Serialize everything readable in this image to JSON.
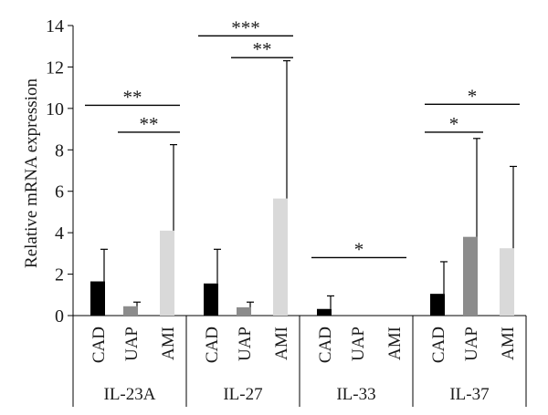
{
  "chart_data": {
    "type": "bar",
    "title": "",
    "xlabel": "",
    "ylabel": "Relative mRNA expression",
    "ylim": [
      0,
      14
    ],
    "yticks": [
      0,
      2,
      4,
      6,
      8,
      10,
      12,
      14
    ],
    "grid": false,
    "legend": "none",
    "colors": {
      "CAD": "#000000",
      "UAP": "#8c8c8c",
      "AMI": "#d9d9d9"
    },
    "groups": [
      {
        "name": "IL-23A",
        "bars": [
          {
            "category": "CAD",
            "value": 1.65,
            "error": 3.2
          },
          {
            "category": "UAP",
            "value": 0.45,
            "error": 0.65
          },
          {
            "category": "AMI",
            "value": 4.1,
            "error": 8.25
          }
        ]
      },
      {
        "name": "IL-27",
        "bars": [
          {
            "category": "CAD",
            "value": 1.55,
            "error": 3.2
          },
          {
            "category": "UAP",
            "value": 0.4,
            "error": 0.65
          },
          {
            "category": "AMI",
            "value": 5.65,
            "error": 12.3
          }
        ]
      },
      {
        "name": "IL-33",
        "bars": [
          {
            "category": "CAD",
            "value": 0.32,
            "error": 0.95
          },
          {
            "category": "UAP",
            "value": 0,
            "error": null
          },
          {
            "category": "AMI",
            "value": 0,
            "error": null
          }
        ]
      },
      {
        "name": "IL-37",
        "bars": [
          {
            "category": "CAD",
            "value": 1.05,
            "error": 2.6
          },
          {
            "category": "UAP",
            "value": 3.8,
            "error": 8.55
          },
          {
            "category": "AMI",
            "value": 3.25,
            "error": 7.2
          }
        ]
      }
    ],
    "significance": [
      {
        "group": 0,
        "from": 0,
        "to": 2,
        "y": 10.15,
        "label": "**"
      },
      {
        "group": 0,
        "from": 1,
        "to": 2,
        "y": 8.85,
        "label": "**"
      },
      {
        "group": 1,
        "from": 0,
        "to": 2,
        "y": 13.5,
        "label": "***"
      },
      {
        "group": 1,
        "from": 1,
        "to": 2,
        "y": 12.45,
        "label": "**"
      },
      {
        "group": 2,
        "from": 0,
        "to": 2,
        "y": 2.8,
        "label": "*"
      },
      {
        "group": 3,
        "from": 0,
        "to": 2,
        "y": 10.2,
        "label": "*"
      },
      {
        "group": 3,
        "from": 0,
        "to": 1,
        "y": 8.85,
        "label": "*"
      }
    ]
  }
}
